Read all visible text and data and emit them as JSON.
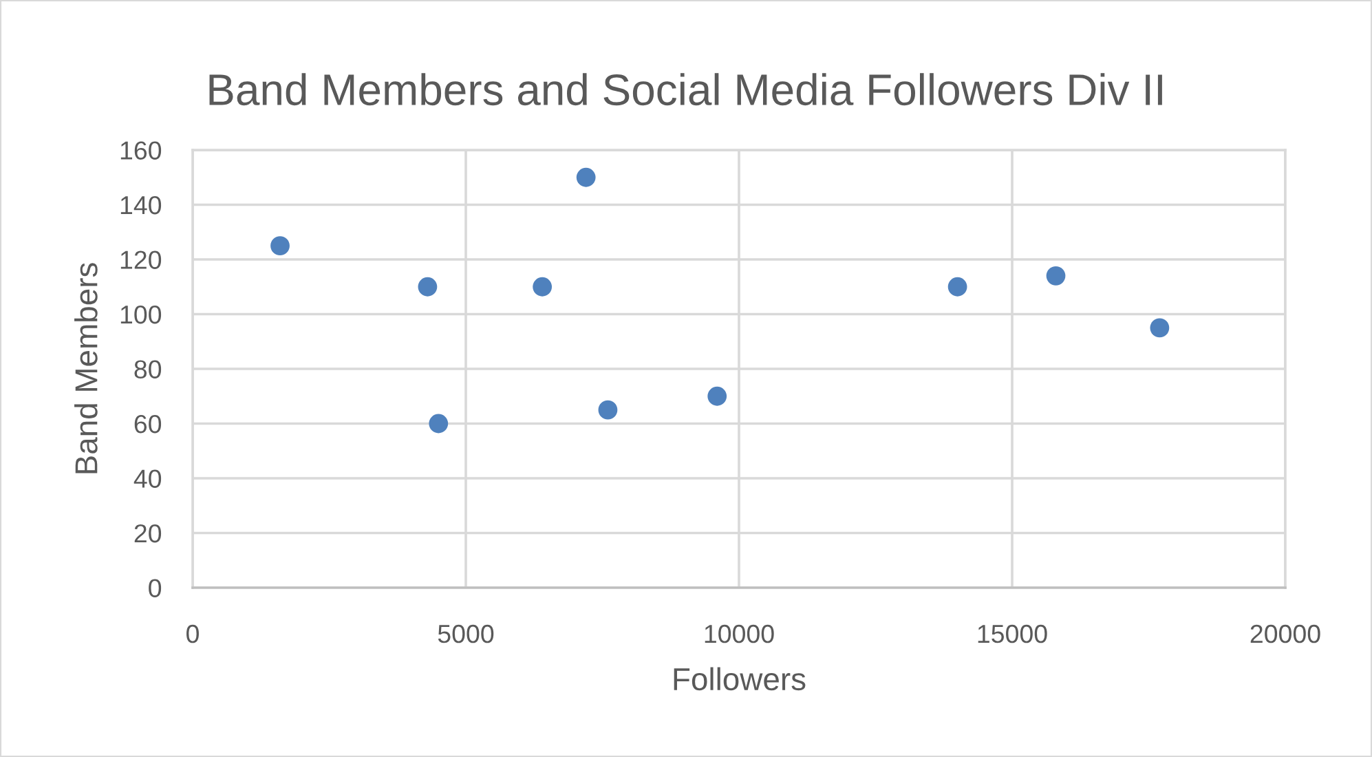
{
  "chart_data": {
    "type": "scatter",
    "title": "Band Members and Social Media Followers Div II",
    "xlabel": "Followers",
    "ylabel": "Band Members",
    "x": [
      1600,
      4300,
      4500,
      6400,
      7200,
      7600,
      9600,
      14000,
      15800,
      17700
    ],
    "values": [
      125,
      110,
      60,
      110,
      150,
      65,
      70,
      110,
      114,
      95
    ],
    "color": "#4f81bd",
    "marker": "circle",
    "xlim": [
      0,
      20000
    ],
    "xticks": [
      0,
      5000,
      10000,
      15000,
      20000
    ],
    "ylim": [
      0,
      160
    ],
    "yticks": [
      0,
      20,
      40,
      60,
      80,
      100,
      120,
      140,
      160
    ],
    "grid": true
  }
}
